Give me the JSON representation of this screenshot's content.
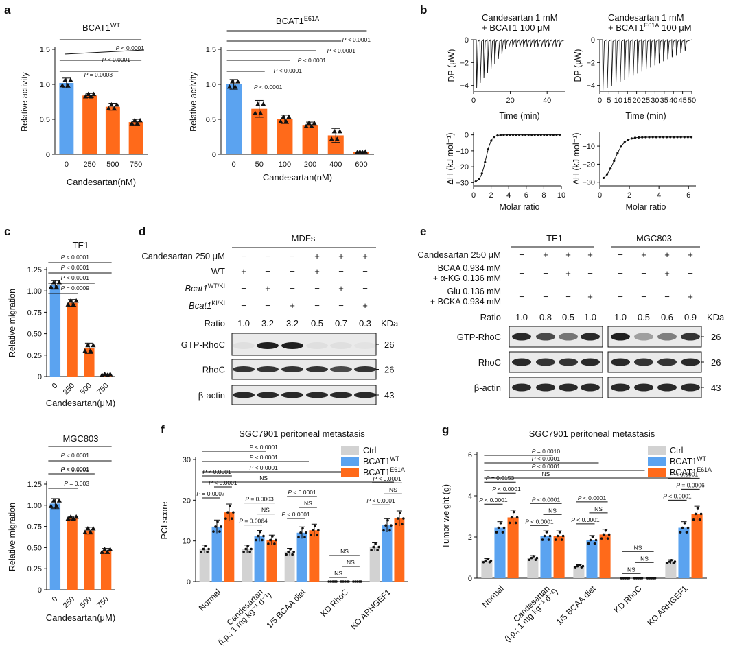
{
  "colors": {
    "blue": "#5BA3F0",
    "orange": "#FF6A1A",
    "gray": "#D2D2D2",
    "band": "#141414",
    "blot_bg": "#EAEAEA"
  },
  "panel_labels": {
    "a": "a",
    "b": "b",
    "c": "c",
    "d": "d",
    "e": "e",
    "f": "f",
    "g": "g"
  },
  "chart_data": [
    {
      "id": "a1",
      "type": "bar",
      "title": "BCAT1",
      "title_sup": "WT",
      "xlabel": "Candesartan(nM)",
      "ylabel": "Relative activity",
      "categories": [
        "0",
        "250",
        "500",
        "750"
      ],
      "values": [
        1.02,
        0.84,
        0.68,
        0.46
      ],
      "ylim": [
        0,
        1.5
      ],
      "yticks": [
        "0",
        "0.5",
        "1.0",
        "1.5"
      ],
      "comparisons": [
        "P < 0.0001",
        "P < 0.0001",
        "P = 0.0003"
      ]
    },
    {
      "id": "a2",
      "type": "bar",
      "title": "BCAT1",
      "title_sup": "E61A",
      "xlabel": "Candesartan(nM)",
      "ylabel": "Relative activity",
      "categories": [
        "0",
        "50",
        "100",
        "200",
        "400",
        "600"
      ],
      "values": [
        1.0,
        0.65,
        0.5,
        0.42,
        0.27,
        0.03
      ],
      "ylim": [
        0,
        1.5
      ],
      "yticks": [
        "0",
        "0.5",
        "1.0",
        "1.5"
      ],
      "comparisons": [
        "P < 0.0001",
        "P < 0.0001",
        "P < 0.0001",
        "P < 0.0001",
        "P < 0.0001"
      ]
    },
    {
      "id": "b1",
      "type": "line",
      "title_line1": "Candesartan 1 mM",
      "title_line2": "+ BCAT1 100 μM",
      "top": {
        "xlabel": "Time (min)",
        "ylabel": "DP (μW)",
        "xlim": [
          0,
          50
        ],
        "ylim": [
          -4.5,
          0
        ],
        "xticks": [
          "0",
          "20",
          "40"
        ],
        "yticks": [
          "0",
          "−2",
          "−4"
        ]
      },
      "bottom": {
        "xlabel": "Molar ratio",
        "ylabel": "ΔH (kJ mol⁻¹)",
        "xlim": [
          0,
          10
        ],
        "ylim": [
          -32,
          2
        ],
        "xticks": [
          "0",
          "2",
          "4",
          "6",
          "8",
          "10"
        ],
        "yticks": [
          "0",
          "−10",
          "−20",
          "−30"
        ]
      }
    },
    {
      "id": "b2",
      "type": "line",
      "title_line1": "Candesartan 1 mM",
      "title_line2": "+ BCAT1",
      "title_sup": "E61A",
      "title_line2_end": " 100 μM",
      "top": {
        "xlabel": "Time (min)",
        "ylabel": "DP (μW)",
        "xlim": [
          0,
          50
        ],
        "ylim": [
          -4.5,
          0
        ],
        "xticks": [
          "0",
          "5",
          "10",
          "15",
          "20",
          "25",
          "30",
          "35",
          "40",
          "45",
          "50"
        ],
        "yticks": [
          "0",
          "−2",
          "−4"
        ]
      },
      "bottom": {
        "xlabel": "Molar ratio",
        "ylabel": "ΔH (kJ mol⁻¹)",
        "xlim": [
          0,
          6.5
        ],
        "ylim": [
          -32,
          -2
        ],
        "xticks": [
          "0",
          "2",
          "4",
          "6"
        ],
        "yticks": [
          "−10",
          "−20",
          "−30"
        ]
      }
    },
    {
      "id": "c1",
      "type": "bar",
      "title": "TE1",
      "xlabel": "Candesartan(μM)",
      "ylabel": "Relative migration",
      "categories": [
        "0",
        "250",
        "500",
        "750"
      ],
      "values": [
        1.07,
        0.86,
        0.33,
        0.02
      ],
      "ylim": [
        0,
        1.25
      ],
      "yticks": [
        "0",
        "0.25",
        "0.50",
        "0.75",
        "1.00",
        "1.25"
      ],
      "comparisons": [
        "P < 0.0001",
        "P < 0.0001",
        "P < 0.0001",
        "P = 0.0009"
      ]
    },
    {
      "id": "c2",
      "type": "bar",
      "title": "MGC803",
      "xlabel": "Candesartan(μM)",
      "ylabel": "Relative migration",
      "categories": [
        "0",
        "250",
        "500",
        "750"
      ],
      "values": [
        1.02,
        0.85,
        0.7,
        0.46
      ],
      "ylim": [
        0,
        1.25
      ],
      "yticks": [
        "0",
        "0.25",
        "0.50",
        "0.75",
        "1.00",
        "1.25"
      ],
      "comparisons": [
        "P < 0.0001",
        "P < 0.0001",
        "P < 0.0001",
        "P = 0.003"
      ]
    },
    {
      "id": "f",
      "type": "bar",
      "title": "SGC7901 peritoneal metastasis",
      "ylabel": "PCI score",
      "categories": [
        "Normal",
        "Candesartan (i.p.; 1 mg kg⁻¹ d⁻¹)",
        "1/5 BCAA diet",
        "KD RhoC",
        "KO ARHGEF1"
      ],
      "category_lines": [
        [
          "Normal"
        ],
        [
          "Candesartan",
          "(i.p.; 1 mg kg⁻¹ d⁻¹)"
        ],
        [
          "1/5 BCAA diet"
        ],
        [
          "KD RhoC"
        ],
        [
          "KO ARHGEF1"
        ]
      ],
      "series": [
        {
          "name": "Ctrl",
          "values": [
            8,
            8,
            7.3,
            0,
            8.5
          ]
        },
        {
          "name": "BCAT1",
          "sup": "WT",
          "values": [
            13.5,
            11.2,
            12,
            0,
            13.8
          ]
        },
        {
          "name": "BCAT1",
          "sup": "E61A",
          "values": [
            17,
            10.2,
            12.6,
            0,
            15.5
          ]
        }
      ],
      "ylim": [
        0,
        30
      ],
      "yticks": [
        "0",
        "10",
        "20",
        "30"
      ],
      "top_comparisons": [
        "P < 0.0001",
        "P < 0.0001",
        "P < 0.0001",
        "NS"
      ],
      "group_comparisons": [
        [
          "P = 0.0007",
          "P < 0.0001",
          "P < 0.0001"
        ],
        [
          "P = 0.0064",
          "NS",
          "P = 0.0003"
        ],
        [
          "P < 0.0001",
          "NS",
          "P < 0.0001"
        ],
        [
          "NS",
          "NS",
          "NS"
        ],
        [
          "P < 0.0001",
          "NS",
          "P < 0.0001"
        ]
      ]
    },
    {
      "id": "g",
      "type": "bar",
      "title": "SGC7901 peritoneal metastasis",
      "ylabel": "Tumor weight (g)",
      "categories": [
        "Normal",
        "Candesartan (i.p.; 1 mg kg⁻¹ d⁻¹)",
        "1/5 BCAA diet",
        "KD RhoC",
        "KO ARHGEF1"
      ],
      "category_lines": [
        [
          "Normal"
        ],
        [
          "Candesartan",
          "(i.p.; 1 mg kg⁻¹ d⁻¹)"
        ],
        [
          "1/5 BCAA diet"
        ],
        [
          "KD RhoC"
        ],
        [
          "KO ARHGEF1"
        ]
      ],
      "series": [
        {
          "name": "Ctrl",
          "values": [
            0.85,
            0.98,
            0.58,
            0.02,
            0.8
          ]
        },
        {
          "name": "BCAT1",
          "sup": "WT",
          "values": [
            2.45,
            2.05,
            1.85,
            0.02,
            2.45
          ]
        },
        {
          "name": "BCAT1",
          "sup": "E61A",
          "values": [
            2.95,
            2.05,
            2.12,
            0.02,
            3.12
          ]
        }
      ],
      "ylim": [
        0,
        6
      ],
      "yticks": [
        "0",
        "2",
        "4",
        "6"
      ],
      "top_comparisons": [
        "P = 0.0010",
        "P < 0.0001",
        "P < 0.0001",
        "NS"
      ],
      "group_comparisons": [
        [
          "P < 0.0001",
          "P < 0.0001",
          "P = 0.0153"
        ],
        [
          "P < 0.0001",
          "NS",
          "P < 0.0001"
        ],
        [
          "P < 0.0001",
          "NS",
          "P < 0.0001"
        ],
        [
          "NS",
          "NS",
          "NS"
        ],
        [
          "P < 0.0001",
          "P = 0.0006",
          "P < 0.0001"
        ]
      ]
    }
  ],
  "panel_d": {
    "group_title": "MDFs",
    "rows": [
      {
        "label": "Candesartan 250 μM",
        "values": [
          "−",
          "−",
          "−",
          "+",
          "+",
          "+"
        ]
      },
      {
        "label": "WT",
        "values": [
          "+",
          "−",
          "−",
          "+",
          "−",
          "−"
        ]
      },
      {
        "label": "Bcat1",
        "sup": "WT/KI",
        "values": [
          "−",
          "+",
          "−",
          "−",
          "+",
          "−"
        ]
      },
      {
        "label": "Bcat1",
        "sup": "KI/KI",
        "values": [
          "−",
          "−",
          "+",
          "−",
          "−",
          "+"
        ]
      }
    ],
    "ratio_label": "Ratio",
    "ratios": [
      "1.0",
      "3.2",
      "3.2",
      "0.5",
      "0.7",
      "0.3"
    ],
    "kda_label": "KDa",
    "blots": [
      {
        "label": "GTP-RhoC",
        "kda": "26",
        "intensity": [
          0.05,
          0.95,
          0.95,
          0.05,
          0.05,
          0.03
        ]
      },
      {
        "label": "RhoC",
        "kda": "26",
        "intensity": [
          0.85,
          0.85,
          0.85,
          0.85,
          0.75,
          0.85
        ]
      },
      {
        "label": "β-actin",
        "kda": "43",
        "intensity": [
          0.9,
          0.9,
          0.9,
          0.9,
          0.9,
          0.9
        ]
      }
    ]
  },
  "panel_e": {
    "groups": [
      "TE1",
      "MGC803"
    ],
    "rows": [
      {
        "label": "Candesartan 250 μM",
        "values": [
          "−",
          "+",
          "+",
          "+",
          "−",
          "+",
          "+",
          "+"
        ]
      },
      {
        "label": "BCAA 0.934 mM",
        "label2": "+ α-KG 0.136 mM",
        "values": [
          "−",
          "−",
          "+",
          "−",
          "−",
          "−",
          "+",
          "−"
        ]
      },
      {
        "label": "Glu 0.136 mM",
        "label2": "+ BCKA 0.934 mM",
        "values": [
          "−",
          "−",
          "−",
          "+",
          "−",
          "−",
          "−",
          "+"
        ]
      }
    ],
    "ratio_label": "Ratio",
    "ratios": [
      "1.0",
      "0.8",
      "0.5",
      "1.0",
      "1.0",
      "0.5",
      "0.6",
      "0.9"
    ],
    "kda_label": "KDa",
    "blots": [
      {
        "label": "GTP-RhoC",
        "kda": "26",
        "intensity": [
          0.9,
          0.75,
          0.55,
          0.9,
          0.95,
          0.35,
          0.5,
          0.85
        ]
      },
      {
        "label": "RhoC",
        "kda": "26",
        "intensity": [
          0.9,
          0.85,
          0.85,
          0.9,
          0.9,
          0.85,
          0.85,
          0.9
        ]
      },
      {
        "label": "β-actin",
        "kda": "43",
        "intensity": [
          0.9,
          0.9,
          0.9,
          0.9,
          0.9,
          0.9,
          0.9,
          0.9
        ]
      }
    ]
  }
}
